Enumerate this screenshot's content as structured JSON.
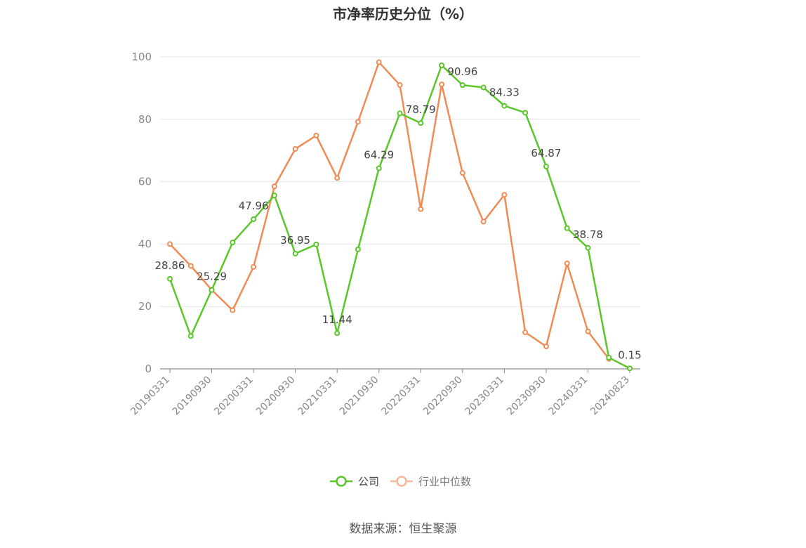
{
  "chart_data": {
    "type": "line",
    "title": "市净率历史分位（%）",
    "xlabel": "",
    "ylabel": "",
    "ylim": [
      0,
      100
    ],
    "yticks": [
      0,
      20,
      40,
      60,
      80,
      100
    ],
    "grid": true,
    "legend_position": "bottom",
    "x": [
      "20190331",
      "20190630",
      "20190930",
      "20191231",
      "20200331",
      "20200630",
      "20200930",
      "20201231",
      "20210331",
      "20210630",
      "20210930",
      "20211231",
      "20220331",
      "20220630",
      "20220930",
      "20221231",
      "20230331",
      "20230630",
      "20230930",
      "20231231",
      "20240331",
      "20240630",
      "20240823"
    ],
    "xtick_labels": [
      "20190331",
      "20190930",
      "20200331",
      "20200930",
      "20210331",
      "20210930",
      "20220331",
      "20220930",
      "20230331",
      "20230930",
      "20240331",
      "20240823"
    ],
    "xtick_indices": [
      0,
      2,
      4,
      6,
      8,
      10,
      12,
      14,
      16,
      18,
      20,
      22
    ],
    "series": [
      {
        "name": "公司",
        "color": "#5bc62a",
        "values": [
          28.86,
          10.5,
          25.29,
          40.5,
          47.96,
          55.6,
          36.95,
          39.9,
          11.44,
          38.3,
          64.29,
          81.9,
          78.79,
          97.3,
          90.96,
          90.2,
          84.33,
          82.1,
          64.87,
          45.1,
          38.78,
          3.6,
          0.15
        ],
        "data_labels": {
          "0": "28.86",
          "2": "25.29",
          "4": "47.96",
          "6": "36.95",
          "8": "11.44",
          "10": "64.29",
          "12": "78.79",
          "14": "90.96",
          "16": "84.33",
          "18": "64.87",
          "20": "38.78",
          "22": "0.15"
        }
      },
      {
        "name": "行业中位数",
        "color": "#f08b55",
        "values": [
          40.0,
          33.0,
          25.3,
          18.8,
          32.7,
          58.5,
          70.5,
          74.8,
          61.2,
          79.2,
          98.3,
          91.0,
          51.2,
          91.2,
          62.8,
          47.2,
          55.8,
          11.7,
          7.2,
          33.8,
          12.0,
          3.2,
          null
        ]
      }
    ]
  },
  "source": "数据来源：恒生聚源"
}
